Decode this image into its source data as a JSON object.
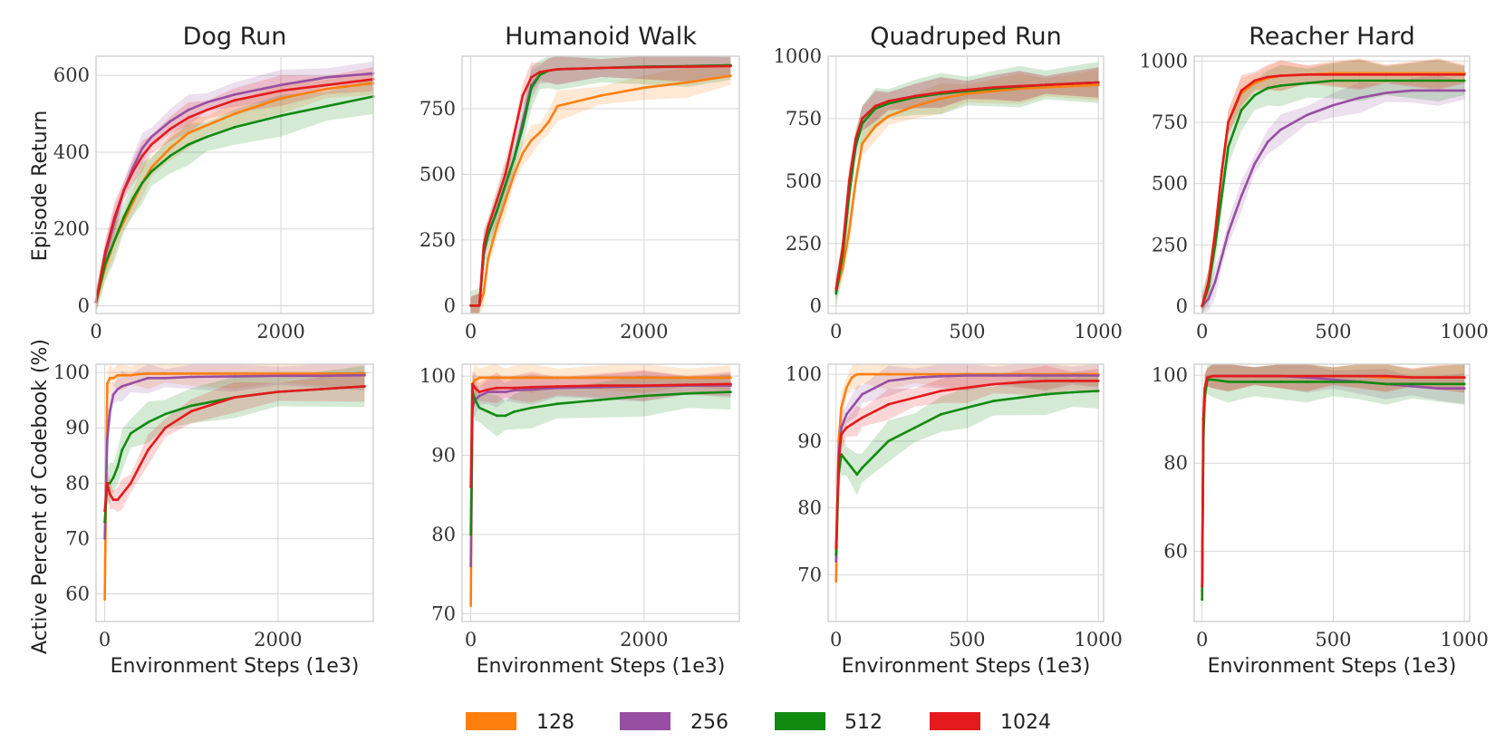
{
  "figure": {
    "row_ylabels": [
      "Episode Return",
      "Active Percent of Codebook (%)"
    ],
    "xlabel": "Environment Steps (1e3)"
  },
  "legend": {
    "items": [
      {
        "label": "128",
        "color": "#ff7f0e"
      },
      {
        "label": "256",
        "color": "#984ea3"
      },
      {
        "label": "512",
        "color": "#118a11"
      },
      {
        "label": "1024",
        "color": "#e41a1c"
      }
    ]
  },
  "chart_data": [
    {
      "type": "line",
      "title": "Dog Run",
      "xlabel": "",
      "ylabel": "Episode Return",
      "xlim": [
        0,
        3000
      ],
      "ylim": [
        -20,
        650
      ],
      "xticks": [
        0,
        2000
      ],
      "yticks": [
        0,
        200,
        400,
        600
      ],
      "x": [
        0,
        100,
        200,
        300,
        400,
        500,
        600,
        800,
        1000,
        1200,
        1500,
        2000,
        2500,
        3000
      ],
      "series": [
        {
          "name": "128",
          "values": [
            10,
            100,
            170,
            220,
            270,
            320,
            360,
            410,
            450,
            470,
            500,
            540,
            565,
            580
          ]
        },
        {
          "name": "256",
          "values": [
            10,
            130,
            220,
            300,
            360,
            410,
            440,
            480,
            510,
            530,
            550,
            575,
            595,
            605
          ]
        },
        {
          "name": "512",
          "values": [
            10,
            110,
            170,
            230,
            280,
            320,
            350,
            390,
            420,
            440,
            465,
            495,
            520,
            545
          ]
        },
        {
          "name": "1024",
          "values": [
            10,
            140,
            230,
            300,
            350,
            390,
            420,
            460,
            490,
            510,
            535,
            560,
            575,
            590
          ]
        }
      ]
    },
    {
      "type": "line",
      "title": "Humanoid Walk",
      "xlabel": "",
      "ylabel": "",
      "xlim": [
        -100,
        3100
      ],
      "ylim": [
        -30,
        950
      ],
      "xticks": [
        0,
        2000
      ],
      "yticks": [
        0,
        250,
        500,
        750
      ],
      "x": [
        0,
        100,
        150,
        200,
        300,
        400,
        500,
        600,
        700,
        800,
        900,
        1000,
        1500,
        2000,
        2500,
        3000
      ],
      "series": [
        {
          "name": "128",
          "values": [
            0,
            0,
            50,
            180,
            300,
            400,
            500,
            580,
            630,
            660,
            700,
            760,
            800,
            830,
            850,
            875
          ]
        },
        {
          "name": "256",
          "values": [
            0,
            0,
            200,
            270,
            360,
            460,
            560,
            700,
            840,
            880,
            895,
            900,
            905,
            910,
            912,
            915
          ]
        },
        {
          "name": "512",
          "values": [
            0,
            0,
            200,
            270,
            360,
            460,
            560,
            680,
            830,
            880,
            895,
            900,
            905,
            910,
            912,
            915
          ]
        },
        {
          "name": "1024",
          "values": [
            0,
            0,
            230,
            300,
            400,
            500,
            650,
            800,
            870,
            890,
            895,
            900,
            905,
            908,
            910,
            912
          ]
        }
      ]
    },
    {
      "type": "line",
      "title": "Quadruped Run",
      "xlabel": "",
      "ylabel": "",
      "xlim": [
        -30,
        1020
      ],
      "ylim": [
        -30,
        1000
      ],
      "xticks": [
        0,
        500,
        1000
      ],
      "yticks": [
        0,
        250,
        500,
        750,
        1000
      ],
      "x": [
        0,
        25,
        50,
        75,
        100,
        150,
        200,
        300,
        400,
        500,
        600,
        700,
        800,
        900,
        1000
      ],
      "series": [
        {
          "name": "128",
          "values": [
            60,
            150,
            300,
            500,
            650,
            720,
            760,
            800,
            830,
            850,
            860,
            870,
            875,
            880,
            885
          ]
        },
        {
          "name": "256",
          "values": [
            60,
            200,
            450,
            650,
            750,
            800,
            820,
            840,
            855,
            865,
            875,
            880,
            885,
            890,
            895
          ]
        },
        {
          "name": "512",
          "values": [
            50,
            200,
            450,
            640,
            730,
            790,
            810,
            835,
            850,
            860,
            870,
            878,
            885,
            890,
            895
          ]
        },
        {
          "name": "1024",
          "values": [
            70,
            230,
            500,
            670,
            750,
            800,
            820,
            840,
            855,
            865,
            875,
            880,
            885,
            890,
            895
          ]
        }
      ]
    },
    {
      "type": "line",
      "title": "Reacher Hard",
      "xlabel": "",
      "ylabel": "",
      "xlim": [
        -30,
        1020
      ],
      "ylim": [
        -30,
        1020
      ],
      "xticks": [
        0,
        500,
        1000
      ],
      "yticks": [
        0,
        250,
        500,
        750,
        1000
      ],
      "x": [
        0,
        25,
        50,
        75,
        100,
        150,
        200,
        250,
        300,
        400,
        500,
        600,
        700,
        800,
        900,
        1000
      ],
      "series": [
        {
          "name": "128",
          "values": [
            0,
            100,
            300,
            550,
            750,
            870,
            910,
            930,
            940,
            945,
            950,
            950,
            950,
            950,
            950,
            950
          ]
        },
        {
          "name": "256",
          "values": [
            0,
            30,
            100,
            200,
            300,
            450,
            580,
            670,
            720,
            780,
            820,
            850,
            870,
            880,
            880,
            880
          ]
        },
        {
          "name": "512",
          "values": [
            0,
            80,
            250,
            450,
            650,
            800,
            860,
            890,
            900,
            910,
            920,
            920,
            920,
            920,
            920,
            920
          ]
        },
        {
          "name": "1024",
          "values": [
            0,
            100,
            300,
            550,
            750,
            880,
            920,
            935,
            940,
            945,
            945,
            945,
            945,
            945,
            945,
            945
          ]
        }
      ]
    },
    {
      "type": "line",
      "title": "",
      "xlabel": "Environment Steps (1e3)",
      "ylabel": "Active Percent of Codebook (%)",
      "xlim": [
        -100,
        3100
      ],
      "ylim": [
        55,
        101.5
      ],
      "xticks": [
        0,
        2000
      ],
      "yticks": [
        60,
        70,
        80,
        90,
        100
      ],
      "x": [
        0,
        30,
        60,
        100,
        150,
        200,
        300,
        400,
        500,
        700,
        1000,
        1500,
        2000,
        2500,
        3000
      ],
      "series": [
        {
          "name": "128",
          "values": [
            59,
            98,
            99,
            99,
            99.5,
            99.5,
            99.5,
            99.7,
            99.8,
            99.8,
            99.8,
            99.8,
            99.8,
            99.8,
            99.8
          ]
        },
        {
          "name": "256",
          "values": [
            70,
            88,
            93,
            96,
            97,
            97.5,
            98,
            98.5,
            99,
            99,
            99.2,
            99.3,
            99.4,
            99.4,
            99.5
          ]
        },
        {
          "name": "512",
          "values": [
            73,
            80,
            80,
            81,
            83,
            86,
            89,
            90,
            91,
            92.5,
            94,
            95.5,
            96.5,
            97,
            97.5
          ]
        },
        {
          "name": "1024",
          "values": [
            75,
            80,
            78,
            77,
            77,
            78,
            80,
            83,
            86,
            90,
            93,
            95.5,
            96.5,
            97,
            97.5
          ]
        }
      ]
    },
    {
      "type": "line",
      "title": "",
      "xlabel": "Environment Steps (1e3)",
      "ylabel": "",
      "xlim": [
        -100,
        3100
      ],
      "ylim": [
        69,
        101.5
      ],
      "xticks": [
        0,
        2000
      ],
      "yticks": [
        70,
        80,
        90,
        100
      ],
      "x": [
        0,
        20,
        50,
        100,
        200,
        300,
        400,
        500,
        700,
        1000,
        1500,
        2000,
        2500,
        3000
      ],
      "series": [
        {
          "name": "128",
          "values": [
            71,
            99,
            99.5,
            99.8,
            99.8,
            99.8,
            99.8,
            99.8,
            99.8,
            99.8,
            99.8,
            99.8,
            99.8,
            99.8
          ]
        },
        {
          "name": "256",
          "values": [
            76,
            96,
            97,
            97.5,
            98,
            98,
            98,
            98.2,
            98.3,
            98.5,
            98.6,
            98.7,
            98.8,
            98.8
          ]
        },
        {
          "name": "512",
          "values": [
            80,
            98,
            97,
            96,
            95.5,
            95,
            95,
            95.5,
            96,
            96.5,
            97,
            97.5,
            97.8,
            98
          ]
        },
        {
          "name": "1024",
          "values": [
            86,
            99,
            98.5,
            98,
            98.3,
            98.5,
            98.5,
            98.5,
            98.6,
            98.7,
            98.8,
            98.8,
            98.9,
            99
          ]
        }
      ]
    },
    {
      "type": "line",
      "title": "",
      "xlabel": "Environment Steps (1e3)",
      "ylabel": "",
      "xlim": [
        -30,
        1020
      ],
      "ylim": [
        63,
        101.5
      ],
      "xticks": [
        0,
        500,
        1000
      ],
      "yticks": [
        70,
        80,
        90,
        100
      ],
      "x": [
        0,
        10,
        20,
        40,
        60,
        80,
        100,
        150,
        200,
        300,
        400,
        500,
        600,
        700,
        800,
        900,
        1000
      ],
      "series": [
        {
          "name": "128",
          "values": [
            69,
            90,
            95,
            98,
            99.5,
            100,
            100,
            100,
            100,
            100,
            100,
            100,
            100,
            100,
            100,
            100,
            100
          ]
        },
        {
          "name": "256",
          "values": [
            72,
            88,
            92,
            94,
            95,
            96,
            97,
            98,
            99,
            99.5,
            99.7,
            99.8,
            99.8,
            99.8,
            99.8,
            99.8,
            99.8
          ]
        },
        {
          "name": "512",
          "values": [
            73,
            85,
            88,
            87,
            86,
            85,
            86,
            88,
            90,
            92,
            94,
            95,
            96,
            96.5,
            97,
            97.3,
            97.5
          ]
        },
        {
          "name": "1024",
          "values": [
            74,
            87,
            91,
            92,
            92.5,
            93,
            93.5,
            94.5,
            95.5,
            96.5,
            97.5,
            98,
            98.5,
            98.8,
            99,
            99,
            99
          ]
        }
      ]
    },
    {
      "type": "line",
      "title": "",
      "xlabel": "Environment Steps (1e3)",
      "ylabel": "",
      "xlim": [
        -30,
        1020
      ],
      "ylim": [
        44,
        102.5
      ],
      "xticks": [
        0,
        500,
        1000
      ],
      "yticks": [
        60,
        80,
        100
      ],
      "x": [
        0,
        5,
        10,
        20,
        40,
        100,
        200,
        300,
        400,
        500,
        600,
        700,
        800,
        900,
        1000
      ],
      "series": [
        {
          "name": "128",
          "values": [
            52,
            90,
            97,
            99.5,
            99.8,
            99.8,
            99.8,
            99.8,
            99.8,
            99.8,
            99.8,
            99.5,
            99.5,
            99.5,
            99.5
          ]
        },
        {
          "name": "256",
          "values": [
            51,
            88,
            96,
            99.5,
            99.8,
            99.8,
            99.8,
            99.8,
            99.5,
            99,
            98.5,
            98,
            97.5,
            97,
            97
          ]
        },
        {
          "name": "512",
          "values": [
            49,
            85,
            95,
            99,
            99,
            98.5,
            98.5,
            98.5,
            98.5,
            98.5,
            98.5,
            98,
            98,
            98,
            98
          ]
        },
        {
          "name": "1024",
          "values": [
            52,
            90,
            97,
            99.5,
            99.8,
            99.8,
            99.8,
            99.8,
            99.8,
            99.8,
            99.8,
            99.8,
            99.5,
            99.5,
            99.5
          ]
        }
      ]
    }
  ]
}
